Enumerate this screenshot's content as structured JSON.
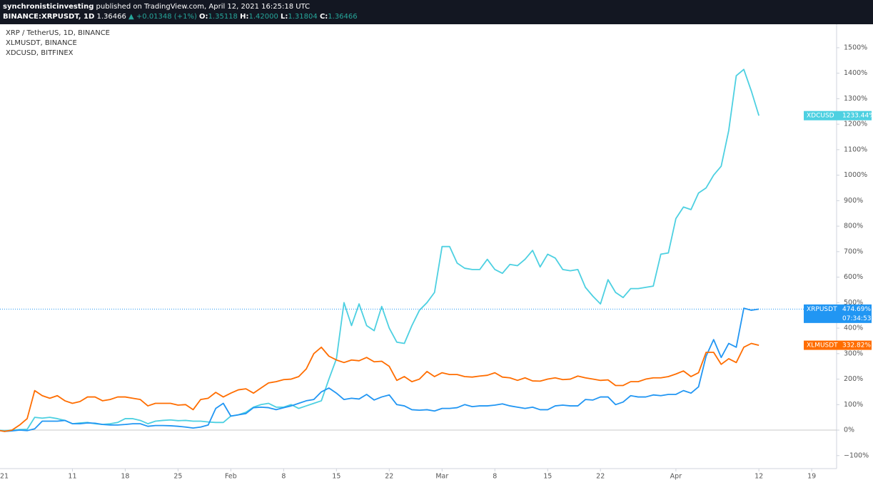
{
  "header": {
    "author": "synchronisticinvesting",
    "published": "published on TradingView.com, April 12, 2021 16:25:18 UTC",
    "symbol": "BINANCE:XRPUSDT, 1D",
    "last": "1.36466",
    "change": "▲ +0.01348 (+1%)",
    "ohlc": [
      {
        "label": "O:",
        "value": "1.35118"
      },
      {
        "label": "H:",
        "value": "1.42000"
      },
      {
        "label": "L:",
        "value": "1.31804"
      },
      {
        "label": "C:",
        "value": "1.36466"
      }
    ]
  },
  "chart_data": {
    "type": "line",
    "legend": [
      "XRP / TetherUS, 1D, BINANCE",
      "XLMUSDT, BINANCE",
      "XDCUSD, BITFINEX"
    ],
    "countdown": "07:34:53",
    "grid": false,
    "x": [
      0,
      1,
      2,
      3,
      4,
      5,
      6,
      7,
      8,
      9,
      10,
      11,
      12,
      13,
      14,
      15,
      16,
      17,
      18,
      19,
      20,
      21,
      22,
      23,
      24,
      25,
      26,
      27,
      28,
      29,
      30,
      31,
      32,
      33,
      34,
      35,
      36,
      37,
      38,
      39,
      40,
      41,
      42,
      43,
      44,
      45,
      46,
      47,
      48,
      49,
      50,
      51,
      52,
      53,
      54,
      55,
      56,
      57,
      58,
      59,
      60,
      61,
      62,
      63,
      64,
      65,
      66,
      67,
      68,
      69,
      70,
      71,
      72,
      73,
      74,
      75,
      76,
      77,
      78,
      79,
      80,
      81,
      82,
      83,
      84,
      85,
      86,
      87,
      88,
      89,
      90,
      91,
      92,
      93,
      94,
      95,
      96,
      97,
      98,
      99,
      100,
      101
    ],
    "xlim": [
      0.4,
      111.3
    ],
    "xticks": [
      {
        "value": 0,
        "label": "21"
      },
      {
        "value": 10,
        "label": "11"
      },
      {
        "value": 17,
        "label": "18"
      },
      {
        "value": 24,
        "label": "25"
      },
      {
        "value": 31,
        "label": "Feb"
      },
      {
        "value": 38,
        "label": "8"
      },
      {
        "value": 45,
        "label": "15"
      },
      {
        "value": 52,
        "label": "22"
      },
      {
        "value": 59,
        "label": "Mar"
      },
      {
        "value": 66,
        "label": "8"
      },
      {
        "value": 73,
        "label": "15"
      },
      {
        "value": 80,
        "label": "22"
      },
      {
        "value": 90,
        "label": "Apr"
      },
      {
        "value": 101,
        "label": "12"
      },
      {
        "value": 108,
        "label": "19"
      }
    ],
    "ylim": [
      -151,
      1592
    ],
    "yticks": [
      {
        "value": -100,
        "label": "−100%"
      },
      {
        "value": 0,
        "label": "0%"
      },
      {
        "value": 100,
        "label": "100%"
      },
      {
        "value": 200,
        "label": "200%"
      },
      {
        "value": 300,
        "label": "300%"
      },
      {
        "value": 400,
        "label": "400%"
      },
      {
        "value": 500,
        "label": "500%"
      },
      {
        "value": 600,
        "label": "600%"
      },
      {
        "value": 700,
        "label": "700%"
      },
      {
        "value": 800,
        "label": "800%"
      },
      {
        "value": 900,
        "label": "900%"
      },
      {
        "value": 1000,
        "label": "1000%"
      },
      {
        "value": 1100,
        "label": "1100%"
      },
      {
        "value": 1200,
        "label": "1200%"
      },
      {
        "value": 1300,
        "label": "1300%"
      },
      {
        "value": 1400,
        "label": "1400%"
      },
      {
        "value": 1500,
        "label": "1500%"
      }
    ],
    "series": [
      {
        "name": "XDCUSD",
        "color": "#4dd0e1",
        "last_label": "1233.44%",
        "values": [
          0,
          -2,
          0,
          2,
          3,
          50,
          47,
          50,
          45,
          38,
          25,
          28,
          30,
          25,
          22,
          25,
          30,
          45,
          45,
          38,
          25,
          35,
          38,
          40,
          37,
          38,
          35,
          35,
          32,
          30,
          30,
          55,
          60,
          70,
          90,
          100,
          105,
          90,
          90,
          100,
          85,
          95,
          105,
          115,
          200,
          280,
          500,
          410,
          495,
          410,
          390,
          485,
          400,
          345,
          340,
          410,
          470,
          500,
          540,
          720,
          720,
          655,
          635,
          630,
          630,
          670,
          630,
          615,
          650,
          645,
          670,
          705,
          640,
          690,
          675,
          630,
          625,
          630,
          560,
          525,
          495,
          590,
          540,
          520,
          555,
          555,
          560,
          565,
          690,
          695,
          830,
          875,
          865,
          930,
          950,
          1000,
          1035,
          1175,
          1390,
          1415,
          1330,
          1233.44
        ]
      },
      {
        "name": "XRPUSDT",
        "color": "#2196f3",
        "last_label": "474.69%",
        "price_line": true,
        "values": [
          0,
          -5,
          -3,
          0,
          -2,
          5,
          35,
          35,
          35,
          38,
          25,
          25,
          28,
          27,
          22,
          20,
          20,
          22,
          25,
          25,
          15,
          18,
          18,
          17,
          15,
          12,
          8,
          12,
          20,
          85,
          105,
          55,
          60,
          65,
          88,
          90,
          88,
          80,
          88,
          95,
          105,
          115,
          120,
          150,
          165,
          145,
          120,
          125,
          122,
          140,
          118,
          130,
          138,
          100,
          95,
          80,
          78,
          80,
          75,
          85,
          85,
          88,
          100,
          92,
          95,
          95,
          98,
          103,
          95,
          90,
          85,
          90,
          80,
          80,
          95,
          98,
          95,
          95,
          120,
          118,
          130,
          130,
          100,
          110,
          135,
          130,
          130,
          138,
          135,
          140,
          140,
          155,
          145,
          170,
          290,
          355,
          285,
          340,
          325,
          478,
          470,
          474.69
        ]
      },
      {
        "name": "XLMUSDT",
        "color": "#ff6d00",
        "last_label": "332.82%",
        "values": [
          0,
          -5,
          0,
          20,
          45,
          155,
          135,
          125,
          135,
          115,
          105,
          112,
          130,
          130,
          115,
          120,
          130,
          130,
          125,
          120,
          95,
          105,
          105,
          105,
          98,
          100,
          80,
          120,
          125,
          148,
          130,
          145,
          158,
          162,
          145,
          165,
          185,
          190,
          198,
          200,
          210,
          240,
          300,
          325,
          290,
          275,
          265,
          275,
          272,
          285,
          268,
          270,
          250,
          195,
          210,
          190,
          200,
          230,
          210,
          225,
          218,
          218,
          210,
          208,
          212,
          215,
          225,
          208,
          205,
          195,
          205,
          193,
          192,
          200,
          205,
          198,
          200,
          212,
          205,
          200,
          195,
          197,
          175,
          175,
          190,
          190,
          200,
          205,
          205,
          210,
          220,
          232,
          210,
          225,
          305,
          305,
          258,
          280,
          265,
          325,
          340,
          332.82
        ]
      }
    ]
  }
}
